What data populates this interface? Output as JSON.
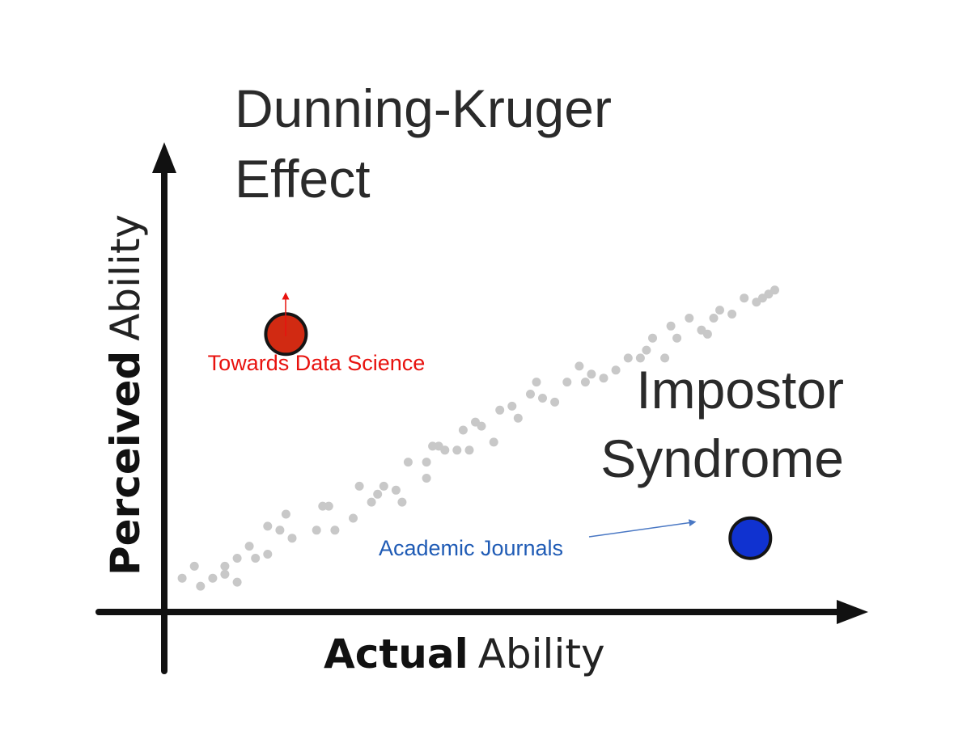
{
  "chart_data": {
    "type": "scatter",
    "xlabel": {
      "bold": "Actual",
      "rest": "Ability"
    },
    "ylabel": {
      "bold": "Perceived",
      "rest": "Ability"
    },
    "xlim": [
      0,
      100
    ],
    "ylim": [
      0,
      100
    ],
    "grid": false,
    "axis_color": "#111111",
    "background_series": {
      "color": "#c8c8c8",
      "points": [
        [
          2,
          4
        ],
        [
          4,
          7
        ],
        [
          5,
          2
        ],
        [
          7,
          4
        ],
        [
          9,
          5
        ],
        [
          9,
          7
        ],
        [
          11,
          9
        ],
        [
          11,
          3
        ],
        [
          13,
          12
        ],
        [
          14,
          9
        ],
        [
          16,
          10
        ],
        [
          16,
          17
        ],
        [
          18,
          16
        ],
        [
          19,
          20
        ],
        [
          20,
          14
        ],
        [
          24,
          16
        ],
        [
          25,
          22
        ],
        [
          26,
          22
        ],
        [
          27,
          16
        ],
        [
          30,
          19
        ],
        [
          31,
          27
        ],
        [
          33,
          23
        ],
        [
          34,
          25
        ],
        [
          35,
          27
        ],
        [
          37,
          26
        ],
        [
          38,
          23
        ],
        [
          39,
          33
        ],
        [
          42,
          29
        ],
        [
          42,
          33
        ],
        [
          43,
          37
        ],
        [
          44,
          37
        ],
        [
          45,
          36
        ],
        [
          47,
          36
        ],
        [
          48,
          41
        ],
        [
          49,
          36
        ],
        [
          50,
          43
        ],
        [
          51,
          42
        ],
        [
          53,
          38
        ],
        [
          54,
          46
        ],
        [
          56,
          47
        ],
        [
          57,
          44
        ],
        [
          59,
          50
        ],
        [
          60,
          53
        ],
        [
          61,
          49
        ],
        [
          63,
          48
        ],
        [
          65,
          53
        ],
        [
          67,
          57
        ],
        [
          68,
          53
        ],
        [
          69,
          55
        ],
        [
          71,
          54
        ],
        [
          73,
          56
        ],
        [
          75,
          59
        ],
        [
          77,
          59
        ],
        [
          78,
          61
        ],
        [
          79,
          64
        ],
        [
          81,
          59
        ],
        [
          82,
          67
        ],
        [
          83,
          64
        ],
        [
          85,
          69
        ],
        [
          87,
          66
        ],
        [
          88,
          65
        ],
        [
          89,
          69
        ],
        [
          90,
          71
        ],
        [
          92,
          70
        ],
        [
          94,
          74
        ],
        [
          96,
          73
        ],
        [
          97,
          74
        ],
        [
          98,
          75
        ],
        [
          99,
          76
        ]
      ]
    },
    "highlight_points": [
      {
        "label": "Dunning-Kruger Effect",
        "x": 19,
        "y": 65,
        "color": "#d12a12"
      },
      {
        "label": "Impostor Syndrome",
        "x": 95,
        "y": 14,
        "color": "#1032d0"
      }
    ],
    "annotations": [
      {
        "text": "Towards Data Science",
        "color": "#e8120e",
        "arrow_color": "#e8120e",
        "target": "Dunning-Kruger Effect"
      },
      {
        "text": "Academic Journals",
        "color": "#1f5bb5",
        "arrow_color": "#4a78c4",
        "target": "Impostor Syndrome"
      }
    ]
  },
  "labels": {
    "dunning_line1": "Dunning-Kruger",
    "dunning_line2": "Effect",
    "impostor_line1": "Impostor",
    "impostor_line2": "Syndrome"
  }
}
